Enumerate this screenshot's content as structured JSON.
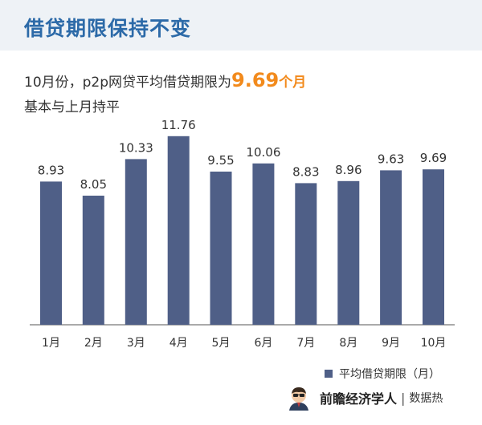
{
  "header": {
    "title": "借贷期限保持不变"
  },
  "summary": {
    "line1_prefix": "10月份，p2p网贷平均借贷期限为",
    "highlight_value": "9.69",
    "highlight_unit": "个月",
    "line2": "基本与上月持平"
  },
  "chart_data": {
    "type": "bar",
    "categories": [
      "1月",
      "2月",
      "3月",
      "4月",
      "5月",
      "6月",
      "7月",
      "8月",
      "9月",
      "10月"
    ],
    "values": [
      8.93,
      8.05,
      10.33,
      11.76,
      9.55,
      10.06,
      8.83,
      8.96,
      9.63,
      9.69
    ],
    "series": [
      {
        "name": "平均借贷期限（月）",
        "values": [
          8.93,
          8.05,
          10.33,
          11.76,
          9.55,
          10.06,
          8.83,
          8.96,
          9.63,
          9.69
        ]
      }
    ],
    "data_labels": [
      "8.93",
      "8.05",
      "10.33",
      "11.76",
      "9.55",
      "10.06",
      "8.83",
      "8.96",
      "9.63",
      "9.69"
    ],
    "ylim": [
      0,
      12
    ],
    "grid": false,
    "legend_position": "bottom-right",
    "bar_color": "#4f5f87"
  },
  "legend": {
    "label": "平均借贷期限（月）"
  },
  "brand": {
    "name": "前瞻经济学人",
    "sub": "数据热"
  },
  "colors": {
    "title": "#2c6aa8",
    "highlight": "#f28a1c",
    "bar": "#4f5f87"
  }
}
